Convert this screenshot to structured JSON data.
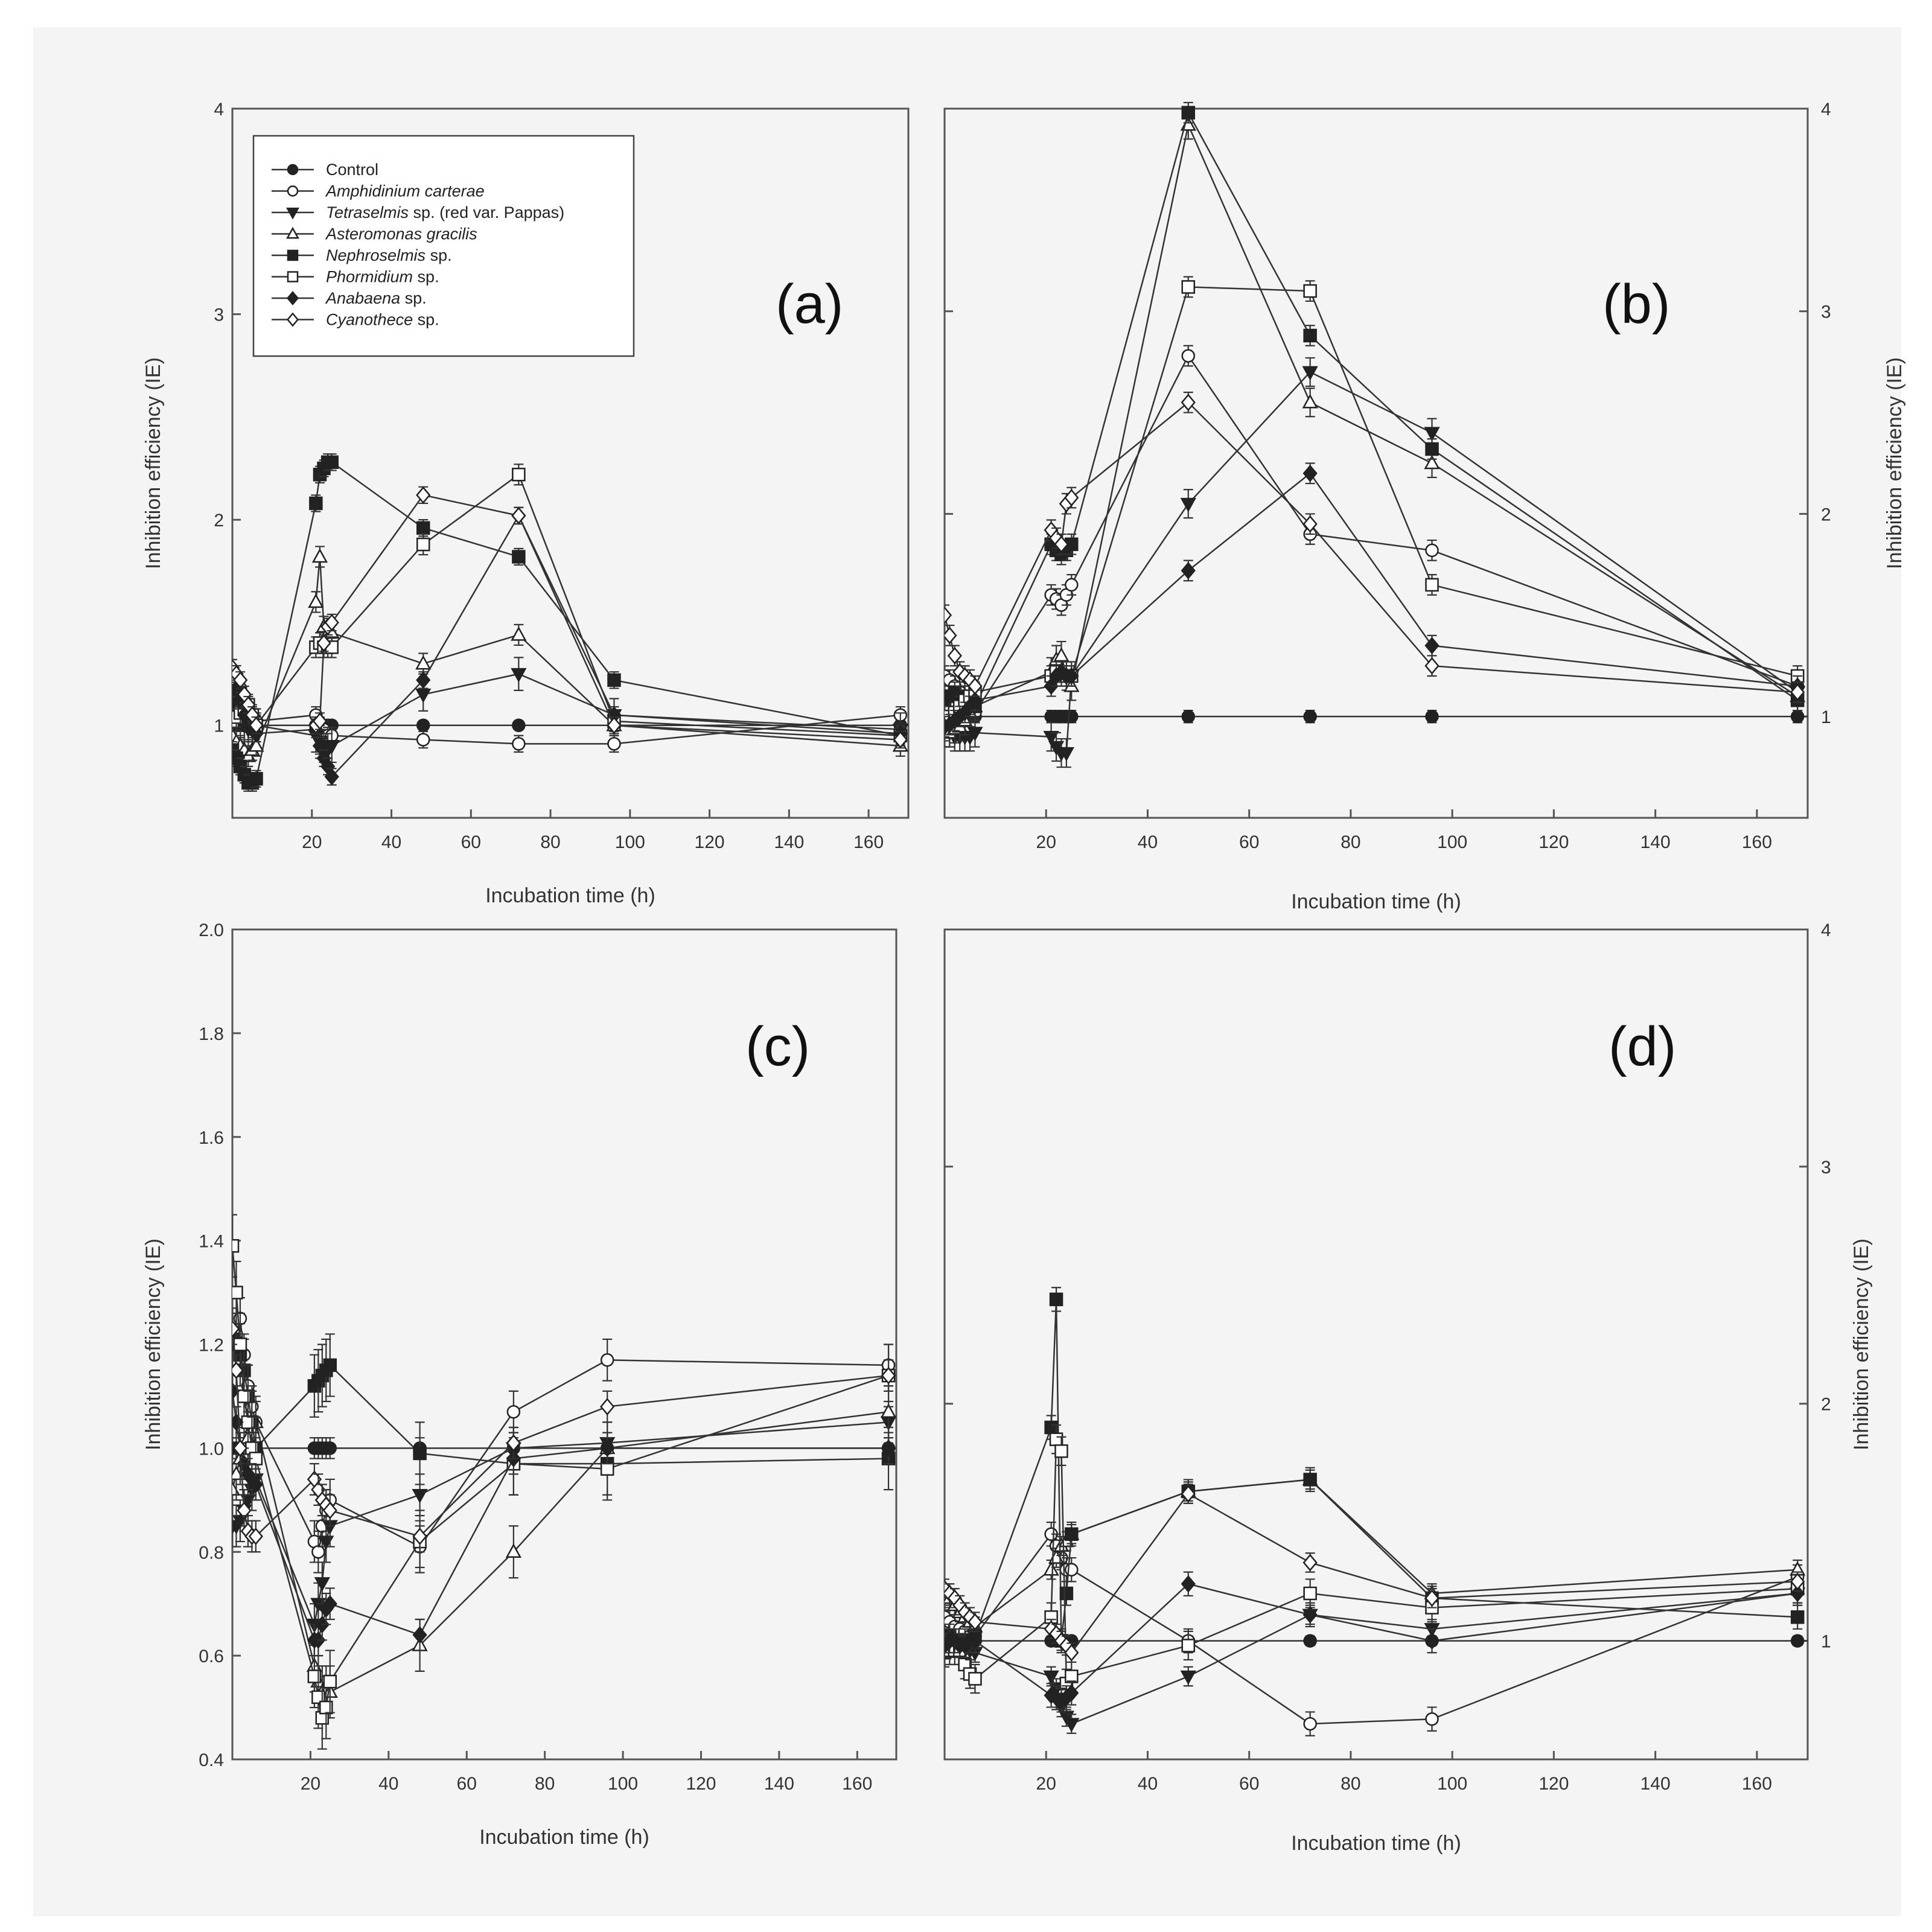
{
  "chart_data": [
    {
      "id": "a",
      "type": "line",
      "panel_label": "(a)",
      "xlabel": "Incubation time (h)",
      "ylabel": "Inhibition efficiency (IE)",
      "xlim": [
        0,
        170
      ],
      "ylim": [
        0.55,
        4.0
      ],
      "xticks": [
        20,
        40,
        60,
        80,
        100,
        120,
        140,
        160
      ],
      "yticks": [
        1,
        2,
        3,
        4
      ],
      "ytick_labels": [
        "1",
        "2",
        "3",
        "4"
      ],
      "yaxis_side": "left",
      "reference_line": 1.0,
      "legend": {
        "placement": "top-left",
        "entries": [
          {
            "name": "Control",
            "italic": "",
            "rest": "Control",
            "marker": "circle",
            "filled": true
          },
          {
            "name": "Amphidinium carterae",
            "italic": "Amphidinium carterae",
            "rest": "",
            "marker": "circle",
            "filled": false
          },
          {
            "name": "Tetraselmis sp. (red var. Pappas)",
            "italic": "Tetraselmis",
            "rest": " sp. (red var. Pappas)",
            "marker": "triangle-down",
            "filled": true
          },
          {
            "name": "Asteromonas gracilis",
            "italic": "Asteromonas gracilis",
            "rest": "",
            "marker": "triangle-up",
            "filled": false
          },
          {
            "name": "Nephroselmis sp.",
            "italic": "Nephroselmis",
            "rest": " sp.",
            "marker": "square",
            "filled": true
          },
          {
            "name": "Phormidium sp.",
            "italic": "Phormidium",
            "rest": " sp.",
            "marker": "square",
            "filled": false
          },
          {
            "name": "Anabaena sp.",
            "italic": "Anabaena",
            "rest": " sp.",
            "marker": "diamond",
            "filled": true
          },
          {
            "name": "Cyanothece sp.",
            "italic": "Cyanothece",
            "rest": " sp.",
            "marker": "diamond",
            "filled": false
          }
        ]
      },
      "x": [
        0,
        1,
        2,
        3,
        4,
        5,
        6,
        21,
        22,
        23,
        24,
        25,
        48,
        72,
        96,
        168
      ],
      "series": [
        {
          "name": "Control",
          "marker": "circle",
          "filled": true,
          "values": [
            1.0,
            1.0,
            1.0,
            1.0,
            1.0,
            1.0,
            1.0,
            1.0,
            1.0,
            1.0,
            1.0,
            1.0,
            1.0,
            1.0,
            1.0,
            1.0
          ],
          "err": 0.02
        },
        {
          "name": "Amphidinium carterae",
          "marker": "circle",
          "filled": false,
          "values": [
            1.25,
            1.22,
            1.18,
            1.12,
            1.08,
            1.05,
            1.02,
            1.05,
            1.0,
            0.98,
            0.95,
            0.95,
            0.93,
            0.91,
            0.91,
            1.05
          ],
          "err": 0.04
        },
        {
          "name": "Tetraselmis sp. (red var. Pappas)",
          "marker": "triangle-down",
          "filled": true,
          "values": [
            1.05,
            1.05,
            1.02,
            1.0,
            0.98,
            1.0,
            1.0,
            0.95,
            0.92,
            0.9,
            0.88,
            0.9,
            1.15,
            1.25,
            1.05,
            0.98
          ],
          "err": 0.08
        },
        {
          "name": "Asteromonas gracilis",
          "marker": "triangle-up",
          "filled": false,
          "values": [
            0.95,
            0.92,
            0.9,
            0.88,
            0.85,
            0.88,
            0.9,
            1.6,
            1.82,
            1.48,
            1.45,
            1.45,
            1.3,
            1.44,
            1.0,
            0.9
          ],
          "err": 0.05
        },
        {
          "name": "Nephroselmis sp.",
          "marker": "square",
          "filled": true,
          "values": [
            0.88,
            0.84,
            0.8,
            0.76,
            0.72,
            0.72,
            0.74,
            2.08,
            2.22,
            2.25,
            2.28,
            2.28,
            1.96,
            1.82,
            1.22,
            0.95
          ],
          "err": 0.04
        },
        {
          "name": "Phormidium sp.",
          "marker": "square",
          "filled": false,
          "values": [
            1.02,
            1.04,
            1.06,
            1.08,
            1.1,
            1.05,
            1.0,
            1.38,
            1.4,
            1.38,
            1.38,
            1.38,
            1.88,
            2.22,
            1.02,
            0.95
          ],
          "err": 0.05
        },
        {
          "name": "Anabaena sp.",
          "marker": "diamond",
          "filled": true,
          "values": [
            1.12,
            1.18,
            1.12,
            1.05,
            1.02,
            0.98,
            0.96,
            0.98,
            0.9,
            0.84,
            0.8,
            0.75,
            1.22,
            2.02,
            1.05,
            0.96
          ],
          "err": 0.04
        },
        {
          "name": "Cyanothece sp.",
          "marker": "diamond",
          "filled": false,
          "values": [
            1.28,
            1.25,
            1.22,
            1.15,
            1.1,
            1.05,
            1.0,
            1.0,
            1.02,
            1.4,
            1.48,
            1.5,
            2.12,
            2.02,
            1.0,
            0.93
          ],
          "err": 0.04
        }
      ]
    },
    {
      "id": "b",
      "type": "line",
      "panel_label": "(b)",
      "xlabel": "Incubation time (h)",
      "ylabel": "Inhibition efficiency (IE)",
      "xlim": [
        0,
        170
      ],
      "ylim": [
        0.5,
        4.0
      ],
      "xticks": [
        20,
        40,
        60,
        80,
        100,
        120,
        140,
        160
      ],
      "yticks": [
        1,
        2,
        3,
        4
      ],
      "ytick_labels": [
        "1",
        "2",
        "3",
        "4"
      ],
      "yaxis_side": "right",
      "reference_line": 1.0,
      "x": [
        0,
        1,
        2,
        3,
        4,
        5,
        6,
        21,
        22,
        23,
        24,
        25,
        48,
        72,
        96,
        168
      ],
      "series": [
        {
          "name": "Control",
          "marker": "circle",
          "filled": true,
          "values": [
            1.0,
            1.0,
            1.0,
            1.0,
            1.0,
            1.0,
            1.0,
            1.0,
            1.0,
            1.0,
            1.0,
            1.0,
            1.0,
            1.0,
            1.0,
            1.0
          ],
          "err": 0.03
        },
        {
          "name": "Amphidinium carterae",
          "marker": "circle",
          "filled": false,
          "values": [
            1.2,
            1.18,
            1.15,
            1.12,
            1.1,
            1.05,
            1.02,
            1.6,
            1.58,
            1.55,
            1.6,
            1.65,
            2.78,
            1.9,
            1.82,
            1.15
          ],
          "err": 0.05
        },
        {
          "name": "Tetraselmis sp. (red var. Pappas)",
          "marker": "triangle-down",
          "filled": true,
          "values": [
            0.95,
            0.92,
            0.9,
            0.9,
            0.9,
            0.9,
            0.92,
            0.9,
            0.85,
            0.82,
            0.82,
            1.2,
            2.05,
            2.7,
            2.4,
            1.12
          ],
          "err": 0.07
        },
        {
          "name": "Asteromonas gracilis",
          "marker": "triangle-up",
          "filled": false,
          "values": [
            0.92,
            0.92,
            0.94,
            0.95,
            0.98,
            1.02,
            1.05,
            1.22,
            1.28,
            1.3,
            1.2,
            1.15,
            3.92,
            2.55,
            2.25,
            1.1
          ],
          "err": 0.07
        },
        {
          "name": "Nephroselmis sp.",
          "marker": "square",
          "filled": true,
          "values": [
            1.08,
            1.1,
            1.12,
            1.1,
            1.08,
            1.06,
            1.05,
            1.85,
            1.82,
            1.8,
            1.82,
            1.85,
            3.98,
            2.88,
            2.32,
            1.08
          ],
          "err": 0.05
        },
        {
          "name": "Phormidium sp.",
          "marker": "square",
          "filled": false,
          "values": [
            0.98,
            1.0,
            1.02,
            1.05,
            1.08,
            1.1,
            1.12,
            1.2,
            1.22,
            1.2,
            1.2,
            1.2,
            3.12,
            3.1,
            1.65,
            1.2
          ],
          "err": 0.05
        },
        {
          "name": "Anabaena sp.",
          "marker": "diamond",
          "filled": true,
          "values": [
            0.95,
            0.96,
            0.98,
            1.0,
            1.02,
            1.05,
            1.08,
            1.15,
            1.2,
            1.22,
            1.2,
            1.2,
            1.72,
            2.2,
            1.35,
            1.15
          ],
          "err": 0.05
        },
        {
          "name": "Cyanothece sp.",
          "marker": "diamond",
          "filled": false,
          "values": [
            1.5,
            1.4,
            1.3,
            1.22,
            1.2,
            1.18,
            1.15,
            1.92,
            1.88,
            1.85,
            2.05,
            2.08,
            2.55,
            1.95,
            1.25,
            1.12
          ],
          "err": 0.05
        }
      ]
    },
    {
      "id": "c",
      "type": "line",
      "panel_label": "(c)",
      "xlabel": "Incubation time (h)",
      "ylabel": "Inhibition efficiency (IE)",
      "xlim": [
        0,
        170
      ],
      "ylim": [
        0.4,
        2.0
      ],
      "xticks": [
        20,
        40,
        60,
        80,
        100,
        120,
        140,
        160
      ],
      "yticks": [
        0.4,
        0.6,
        0.8,
        1.0,
        1.2,
        1.4,
        1.6,
        1.8,
        2.0
      ],
      "ytick_labels": [
        "0.4",
        "0.6",
        "0.8",
        "1.0",
        "1.2",
        "1.4",
        "1.6",
        "1.8",
        "2.0"
      ],
      "yaxis_side": "left",
      "reference_line": 1.0,
      "x": [
        0,
        1,
        2,
        3,
        4,
        5,
        6,
        21,
        22,
        23,
        24,
        25,
        48,
        72,
        96,
        168
      ],
      "series": [
        {
          "name": "Control",
          "marker": "circle",
          "filled": true,
          "values": [
            1.0,
            1.0,
            1.0,
            1.0,
            1.0,
            1.0,
            1.0,
            1.0,
            1.0,
            1.0,
            1.0,
            1.0,
            1.0,
            1.0,
            1.0,
            1.0
          ],
          "err": 0.02
        },
        {
          "name": "Amphidinium carterae",
          "marker": "circle",
          "filled": false,
          "values": [
            1.2,
            1.22,
            1.25,
            1.18,
            1.12,
            1.08,
            1.05,
            0.82,
            0.8,
            0.85,
            0.88,
            0.9,
            0.81,
            1.07,
            1.17,
            1.16
          ],
          "err": 0.04
        },
        {
          "name": "Tetraselmis sp. (red var. Pappas)",
          "marker": "triangle-down",
          "filled": true,
          "values": [
            0.85,
            0.85,
            0.86,
            0.88,
            0.9,
            0.92,
            0.94,
            0.66,
            0.7,
            0.74,
            0.82,
            0.85,
            0.91,
            1.0,
            1.01,
            1.05
          ],
          "err": 0.04
        },
        {
          "name": "Asteromonas gracilis",
          "marker": "triangle-up",
          "filled": false,
          "values": [
            0.92,
            0.95,
            0.98,
            1.0,
            1.02,
            1.04,
            1.05,
            0.58,
            0.55,
            0.53,
            0.53,
            0.53,
            0.62,
            0.8,
            1.0,
            1.07
          ],
          "err": 0.05
        },
        {
          "name": "Nephroselmis sp.",
          "marker": "square",
          "filled": true,
          "values": [
            1.21,
            1.2,
            1.18,
            1.15,
            1.1,
            1.05,
            1.0,
            1.12,
            1.13,
            1.14,
            1.15,
            1.16,
            0.99,
            0.97,
            0.97,
            0.98
          ],
          "err": 0.06
        },
        {
          "name": "Phormidium sp.",
          "marker": "square",
          "filled": false,
          "values": [
            1.39,
            1.3,
            1.2,
            1.1,
            1.05,
            1.0,
            0.98,
            0.56,
            0.52,
            0.48,
            0.5,
            0.55,
            0.82,
            0.97,
            0.96,
            1.14
          ],
          "err": 0.06
        },
        {
          "name": "Anabaena sp.",
          "marker": "diamond",
          "filled": true,
          "values": [
            1.11,
            1.05,
            1.0,
            0.97,
            0.95,
            0.94,
            0.93,
            0.63,
            0.63,
            0.66,
            0.69,
            0.7,
            0.64,
            0.98,
            1.0,
            1.0
          ],
          "err": 0.03
        },
        {
          "name": "Cyanothece sp.",
          "marker": "diamond",
          "filled": false,
          "values": [
            1.23,
            1.15,
            1.0,
            0.88,
            0.84,
            0.83,
            0.83,
            0.94,
            0.92,
            0.9,
            0.89,
            0.88,
            0.83,
            1.01,
            1.08,
            1.14
          ],
          "err": 0.03
        }
      ]
    },
    {
      "id": "d",
      "type": "line",
      "panel_label": "(d)",
      "xlabel": "Incubation time (h)",
      "ylabel": "Inhibition efficiency (IE)",
      "xlim": [
        0,
        170
      ],
      "ylim": [
        0.5,
        4.0
      ],
      "xticks": [
        20,
        40,
        60,
        80,
        100,
        120,
        140,
        160
      ],
      "yticks": [
        1,
        2,
        3,
        4
      ],
      "ytick_labels": [
        "1",
        "2",
        "3",
        "4"
      ],
      "yaxis_side": "right",
      "reference_line": 1.0,
      "x": [
        0,
        1,
        2,
        3,
        4,
        5,
        6,
        21,
        22,
        23,
        24,
        25,
        48,
        72,
        96,
        168
      ],
      "series": [
        {
          "name": "Control",
          "marker": "circle",
          "filled": true,
          "values": [
            1.0,
            1.0,
            1.0,
            1.0,
            1.0,
            1.0,
            1.0,
            1.0,
            1.0,
            1.0,
            1.0,
            1.0,
            1.0,
            1.0,
            1.0,
            1.0
          ],
          "err": 0.02
        },
        {
          "name": "Amphidinium carterae",
          "marker": "circle",
          "filled": false,
          "values": [
            1.1,
            1.08,
            1.06,
            1.05,
            1.04,
            1.02,
            1.02,
            1.45,
            1.4,
            1.35,
            1.3,
            1.3,
            1.0,
            0.65,
            0.67,
            1.27
          ],
          "err": 0.05
        },
        {
          "name": "Tetraselmis sp. (red var. Pappas)",
          "marker": "triangle-down",
          "filled": true,
          "values": [
            0.98,
            0.98,
            0.97,
            0.97,
            0.96,
            0.96,
            0.95,
            0.85,
            0.8,
            0.72,
            0.68,
            0.65,
            0.85,
            1.11,
            1.05,
            1.2
          ],
          "err": 0.04
        },
        {
          "name": "Asteromonas gracilis",
          "marker": "triangle-up",
          "filled": false,
          "values": [
            1.2,
            1.18,
            1.15,
            1.12,
            1.1,
            1.08,
            1.06,
            1.3,
            1.35,
            1.4,
            1.42,
            1.45,
            1.63,
            1.68,
            1.2,
            1.3
          ],
          "err": 0.04
        },
        {
          "name": "Nephroselmis sp.",
          "marker": "square",
          "filled": true,
          "values": [
            1.0,
            1.02,
            1.0,
            0.98,
            1.0,
            1.0,
            1.02,
            1.9,
            2.44,
            1.0,
            1.2,
            1.45,
            1.63,
            1.68,
            1.18,
            1.1
          ],
          "err": 0.05
        },
        {
          "name": "Phormidium sp.",
          "marker": "square",
          "filled": false,
          "values": [
            0.95,
            0.96,
            0.96,
            0.96,
            0.9,
            0.86,
            0.84,
            1.1,
            1.85,
            1.8,
            0.82,
            0.85,
            0.98,
            1.2,
            1.14,
            1.22
          ],
          "err": 0.06
        },
        {
          "name": "Anabaena sp.",
          "marker": "diamond",
          "filled": true,
          "values": [
            0.98,
            1.0,
            1.0,
            0.98,
            0.98,
            1.0,
            1.0,
            0.77,
            0.76,
            0.75,
            0.76,
            0.78,
            1.24,
            1.11,
            1.0,
            1.2
          ],
          "err": 0.05
        },
        {
          "name": "Cyanothece sp.",
          "marker": "diamond",
          "filled": false,
          "values": [
            1.22,
            1.2,
            1.18,
            1.15,
            1.12,
            1.1,
            1.08,
            1.05,
            1.03,
            1.0,
            0.98,
            0.95,
            1.62,
            1.33,
            1.18,
            1.25
          ],
          "err": 0.04
        }
      ]
    }
  ]
}
